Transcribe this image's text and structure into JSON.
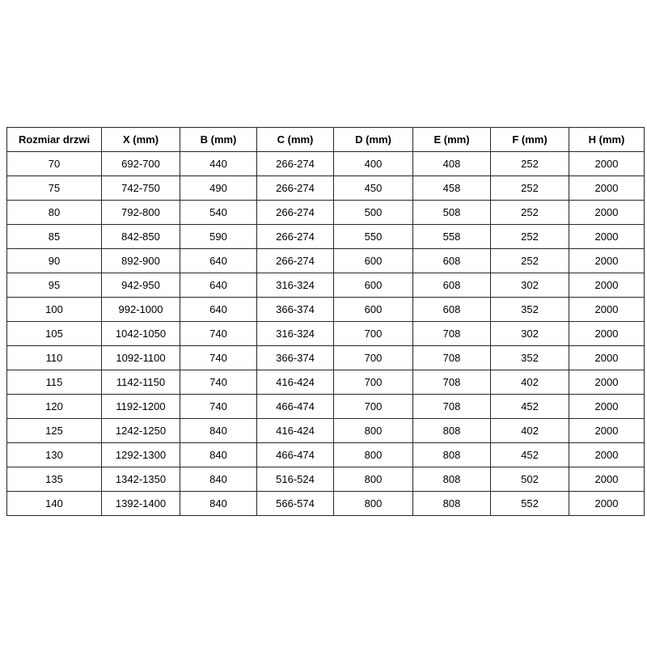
{
  "table": {
    "name": "door-size-specification-table",
    "columns": [
      "Rozmiar drzwi",
      "X (mm)",
      "B (mm)",
      "C (mm)",
      "D (mm)",
      "E (mm)",
      "F (mm)",
      "H (mm)"
    ],
    "rows": [
      [
        "70",
        "692-700",
        "440",
        "266-274",
        "400",
        "408",
        "252",
        "2000"
      ],
      [
        "75",
        "742-750",
        "490",
        "266-274",
        "450",
        "458",
        "252",
        "2000"
      ],
      [
        "80",
        "792-800",
        "540",
        "266-274",
        "500",
        "508",
        "252",
        "2000"
      ],
      [
        "85",
        "842-850",
        "590",
        "266-274",
        "550",
        "558",
        "252",
        "2000"
      ],
      [
        "90",
        "892-900",
        "640",
        "266-274",
        "600",
        "608",
        "252",
        "2000"
      ],
      [
        "95",
        "942-950",
        "640",
        "316-324",
        "600",
        "608",
        "302",
        "2000"
      ],
      [
        "100",
        "992-1000",
        "640",
        "366-374",
        "600",
        "608",
        "352",
        "2000"
      ],
      [
        "105",
        "1042-1050",
        "740",
        "316-324",
        "700",
        "708",
        "302",
        "2000"
      ],
      [
        "110",
        "1092-1100",
        "740",
        "366-374",
        "700",
        "708",
        "352",
        "2000"
      ],
      [
        "115",
        "1142-1150",
        "740",
        "416-424",
        "700",
        "708",
        "402",
        "2000"
      ],
      [
        "120",
        "1192-1200",
        "740",
        "466-474",
        "700",
        "708",
        "452",
        "2000"
      ],
      [
        "125",
        "1242-1250",
        "840",
        "416-424",
        "800",
        "808",
        "402",
        "2000"
      ],
      [
        "130",
        "1292-1300",
        "840",
        "466-474",
        "800",
        "808",
        "452",
        "2000"
      ],
      [
        "135",
        "1342-1350",
        "840",
        "516-524",
        "800",
        "808",
        "502",
        "2000"
      ],
      [
        "140",
        "1392-1400",
        "840",
        "566-574",
        "800",
        "808",
        "552",
        "2000"
      ]
    ]
  },
  "colors": {
    "border": "#262626",
    "text": "#000000",
    "background": "#ffffff"
  }
}
